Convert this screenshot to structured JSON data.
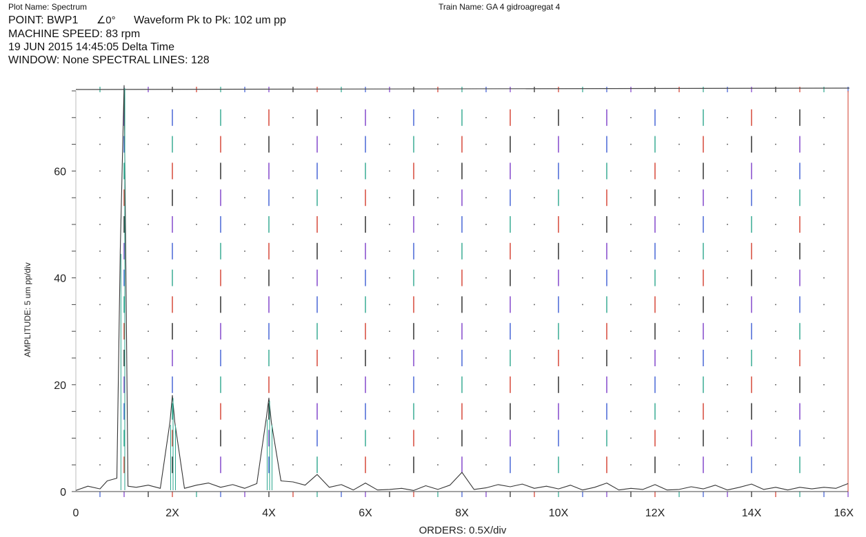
{
  "header": {
    "plot_name": "Plot Name: Spectrum",
    "train_name": "Train Name: GA 4 gidroagregat 4",
    "point": "POINT: BWP1",
    "angle": "∠0°",
    "waveform": "Waveform Pk to Pk: 102 um pp",
    "machine_speed": "MACHINE SPEED: 83 rpm",
    "date_line": "19 JUN 2015 14:45:05  Delta Time",
    "window_line": "WINDOW: None  SPECTRAL LINES: 128"
  },
  "chart_data": {
    "type": "line",
    "title": "",
    "xlabel": "ORDERS: 0.5X/div",
    "ylabel": "AMPLITUDE: 5 um pp/div",
    "xlim": [
      0,
      16
    ],
    "ylim": [
      0,
      75
    ],
    "x_ticks": [
      0,
      2,
      4,
      6,
      8,
      10,
      12,
      14,
      16
    ],
    "x_tick_labels": [
      "0",
      "2X",
      "4X",
      "6X",
      "8X",
      "10X",
      "12X",
      "14X",
      "16X"
    ],
    "y_ticks": [
      0,
      20,
      40,
      60
    ],
    "y_tick_labels": [
      "0",
      "20",
      "40",
      "60"
    ],
    "grid": "dotted",
    "line_color": "#333333",
    "order_marker_colors": [
      "#d23a2a",
      "#2aa58c",
      "#3a5ad2",
      "#7a3ac8",
      "#222222"
    ],
    "series": [
      {
        "x": [
          0,
          0.25,
          0.5,
          0.65,
          0.85,
          0.92,
          1.0,
          1.08,
          1.25,
          1.5,
          1.75,
          1.95,
          2.0,
          2.05,
          2.25,
          2.5,
          2.75,
          3.0,
          3.25,
          3.5,
          3.75,
          3.95,
          4.0,
          4.05,
          4.25,
          4.5,
          4.75,
          5.0,
          5.25,
          5.5,
          5.75,
          6.0,
          6.25,
          6.5,
          6.75,
          7.0,
          7.25,
          7.5,
          7.75,
          8.0,
          8.25,
          8.5,
          8.75,
          9.0,
          9.25,
          9.5,
          9.75,
          10.0,
          10.25,
          10.5,
          10.75,
          11.0,
          11.25,
          11.5,
          11.75,
          12.0,
          12.25,
          12.5,
          12.75,
          13.0,
          13.25,
          13.5,
          13.75,
          14.0,
          14.25,
          14.5,
          14.75,
          15.0,
          15.25,
          15.5,
          15.75,
          16.0
        ],
        "y": [
          0.2,
          1.0,
          0.5,
          2.0,
          2.5,
          45,
          76,
          1.0,
          0.8,
          1.2,
          0.6,
          13,
          18,
          13,
          0.6,
          1.2,
          1.6,
          0.8,
          1.3,
          0.6,
          1.5,
          14,
          17.5,
          13,
          2.0,
          1.8,
          1.2,
          3.2,
          0.8,
          1.3,
          0.3,
          1.6,
          0.3,
          0.4,
          0.6,
          0.2,
          1.1,
          0.4,
          1.2,
          3.6,
          0.4,
          0.7,
          1.3,
          0.9,
          1.4,
          0.6,
          1.0,
          0.5,
          1.2,
          0.3,
          0.8,
          1.6,
          0.3,
          0.6,
          0.4,
          1.3,
          0.3,
          0.4,
          0.9,
          0.5,
          1.2,
          0.3,
          0.8,
          1.4,
          0.4,
          0.8,
          0.3,
          0.8,
          0.5,
          0.8,
          0.6,
          1.5
        ]
      }
    ]
  }
}
